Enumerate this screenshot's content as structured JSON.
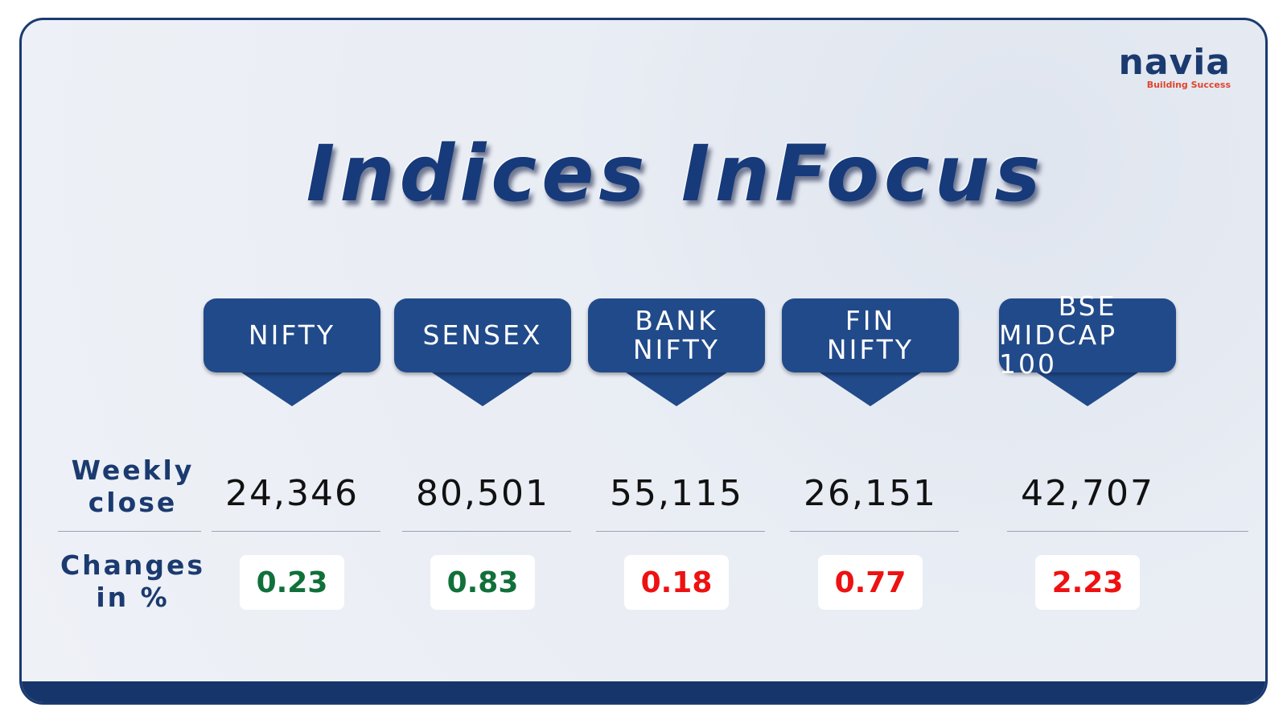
{
  "header": {
    "title": "Indices InFocus"
  },
  "logo": {
    "name": "navia",
    "tagline": "Building Success"
  },
  "row_labels": {
    "weekly_close": [
      "Weekly",
      "close"
    ],
    "changes": [
      "Changes",
      "in %"
    ]
  },
  "indices": [
    {
      "name_lines": [
        "NIFTY"
      ],
      "weekly_close": "24,346",
      "change": "0.23",
      "color": "#11703a"
    },
    {
      "name_lines": [
        "SENSEX"
      ],
      "weekly_close": "80,501",
      "change": "0.83",
      "color": "#11703a"
    },
    {
      "name_lines": [
        "BANK",
        "NIFTY"
      ],
      "weekly_close": "55,115",
      "change": "0.18",
      "color": "#ee1111"
    },
    {
      "name_lines": [
        "FIN",
        "NIFTY"
      ],
      "weekly_close": "26,151",
      "change": "0.77",
      "color": "#ee1111"
    },
    {
      "name_lines": [
        "BSE",
        "MIDCAP 100"
      ],
      "weekly_close": "42,707",
      "change": "2.23",
      "color": "#ee1111"
    }
  ]
}
